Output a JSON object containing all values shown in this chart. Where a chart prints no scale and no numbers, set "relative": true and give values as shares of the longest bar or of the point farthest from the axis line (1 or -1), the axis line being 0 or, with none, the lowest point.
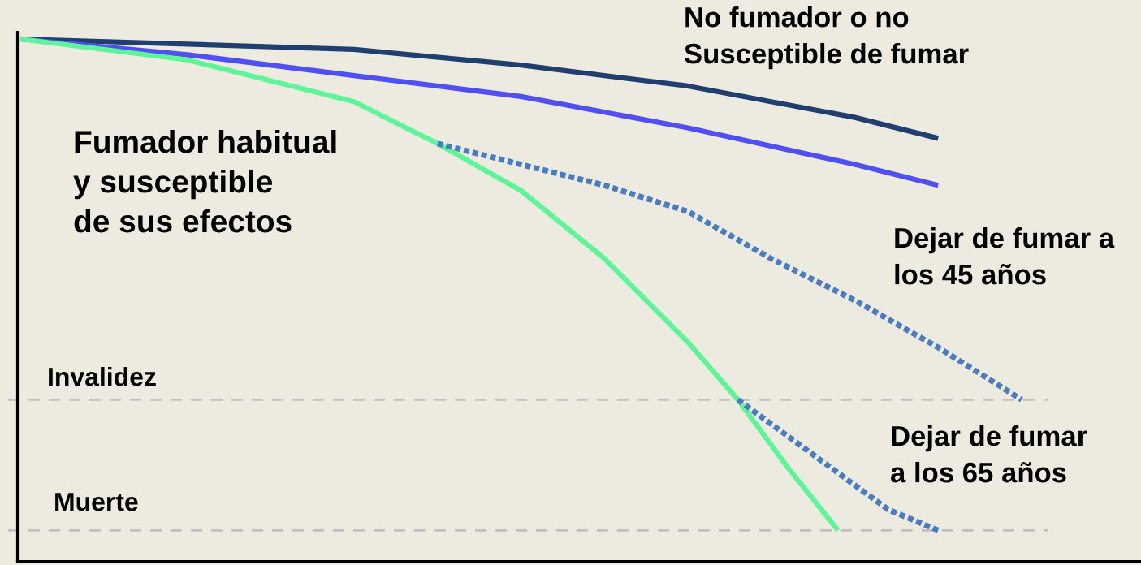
{
  "chart_data": {
    "type": "line",
    "relative": true,
    "legend": false,
    "marker": "none",
    "categories": [
      null,
      null,
      null,
      null,
      null,
      null,
      null,
      null,
      null,
      null,
      null,
      null,
      null,
      null,
      null,
      null,
      null,
      null,
      null,
      null,
      null,
      null,
      null,
      null,
      null,
      null,
      null,
      null,
      null,
      null,
      null,
      null,
      null,
      null,
      null,
      null,
      null,
      null,
      null,
      null,
      null,
      null,
      null,
      null,
      null,
      null,
      null,
      null,
      null,
      null,
      null,
      null,
      null,
      null,
      null,
      null,
      null,
      null,
      null,
      null,
      null
    ],
    "series": [
      {
        "name": "No fumador o no\nSusceptible de fumar",
        "color": "#203f6e",
        "line_style": "solid",
        "values": [
          1,
          null,
          null,
          null,
          null,
          null,
          null,
          null,
          null,
          null,
          0.99,
          null,
          null,
          null,
          null,
          null,
          null,
          null,
          null,
          null,
          0.98,
          null,
          null,
          null,
          null,
          null,
          null,
          null,
          null,
          null,
          0.95,
          null,
          null,
          null,
          null,
          null,
          null,
          null,
          null,
          null,
          0.91,
          null,
          null,
          null,
          null,
          null,
          null,
          null,
          null,
          null,
          0.85,
          null,
          null,
          null,
          null,
          0.81,
          null,
          null,
          null,
          null,
          null
        ]
      },
      {
        "color": "#5050f2",
        "line_style": "solid",
        "values": [
          1,
          null,
          null,
          null,
          null,
          null,
          null,
          null,
          null,
          null,
          0.97,
          null,
          null,
          null,
          null,
          null,
          null,
          null,
          null,
          null,
          0.93,
          null,
          null,
          null,
          null,
          null,
          null,
          null,
          null,
          null,
          0.89,
          null,
          null,
          null,
          null,
          null,
          null,
          null,
          null,
          null,
          0.83,
          null,
          null,
          null,
          null,
          null,
          null,
          null,
          null,
          null,
          0.76,
          null,
          null,
          null,
          null,
          0.72,
          null,
          null,
          null,
          null,
          null
        ]
      },
      {
        "name": "Fumador habitual\ny susceptible\nde sus efectos",
        "color": "#5ef598",
        "line_style": "solid",
        "values": [
          1,
          null,
          null,
          null,
          null,
          null,
          null,
          null,
          null,
          null,
          0.96,
          null,
          null,
          null,
          null,
          null,
          null,
          null,
          null,
          null,
          0.88,
          null,
          null,
          null,
          null,
          0.8,
          null,
          null,
          null,
          null,
          0.71,
          null,
          null,
          null,
          null,
          0.58,
          null,
          null,
          null,
          null,
          0.42,
          null,
          null,
          0.31,
          null,
          null,
          0.18,
          null,
          null,
          0.06,
          null,
          null,
          null,
          null,
          null,
          null,
          null,
          null,
          null,
          null,
          null
        ]
      },
      {
        "name": "Dejar de fumar a\nlos 45 años",
        "color": "#4a7cc4",
        "line_style": "dotted",
        "values": [
          null,
          null,
          null,
          null,
          null,
          null,
          null,
          null,
          null,
          null,
          null,
          null,
          null,
          null,
          null,
          null,
          null,
          null,
          null,
          null,
          null,
          null,
          null,
          null,
          null,
          0.8,
          null,
          null,
          null,
          null,
          0.76,
          null,
          null,
          null,
          null,
          0.72,
          null,
          null,
          null,
          null,
          0.67,
          null,
          null,
          null,
          null,
          0.58,
          null,
          null,
          null,
          null,
          0.5,
          null,
          null,
          null,
          null,
          0.41,
          null,
          null,
          null,
          null,
          0.31
        ]
      },
      {
        "name": "Dejar de fumar\na los 65 años",
        "color": "#4a7cc4",
        "line_style": "dotted",
        "values": [
          null,
          null,
          null,
          null,
          null,
          null,
          null,
          null,
          null,
          null,
          null,
          null,
          null,
          null,
          null,
          null,
          null,
          null,
          null,
          null,
          null,
          null,
          null,
          null,
          null,
          null,
          null,
          null,
          null,
          null,
          null,
          null,
          null,
          null,
          null,
          null,
          null,
          null,
          null,
          null,
          null,
          null,
          null,
          0.31,
          null,
          null,
          0.24,
          null,
          null,
          0.17,
          null,
          null,
          0.1,
          null,
          null,
          0.06,
          null,
          null,
          null,
          null,
          null
        ]
      }
    ],
    "ref_lines": [
      {
        "axis": "y",
        "value": 0.31,
        "label": "Invalidez",
        "color": "#c0c0c0",
        "line_style": "dashed"
      },
      {
        "axis": "y",
        "value": 0.06,
        "label": "Muerte",
        "color": "#c0c0c0",
        "line_style": "dashed"
      }
    ]
  }
}
